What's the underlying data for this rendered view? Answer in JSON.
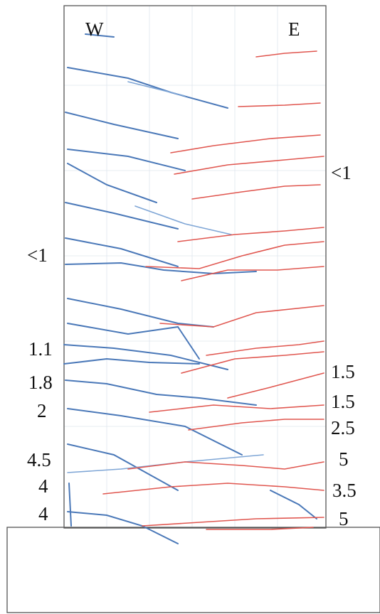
{
  "header": {
    "west": "W",
    "east": "E"
  },
  "left_labels": [
    "<1",
    "1.1",
    "1.8",
    "2",
    "4.5",
    "4",
    "4"
  ],
  "right_labels": [
    "<1",
    "1.5",
    "1.5",
    "2.5",
    "5",
    "3.5",
    "5"
  ]
}
